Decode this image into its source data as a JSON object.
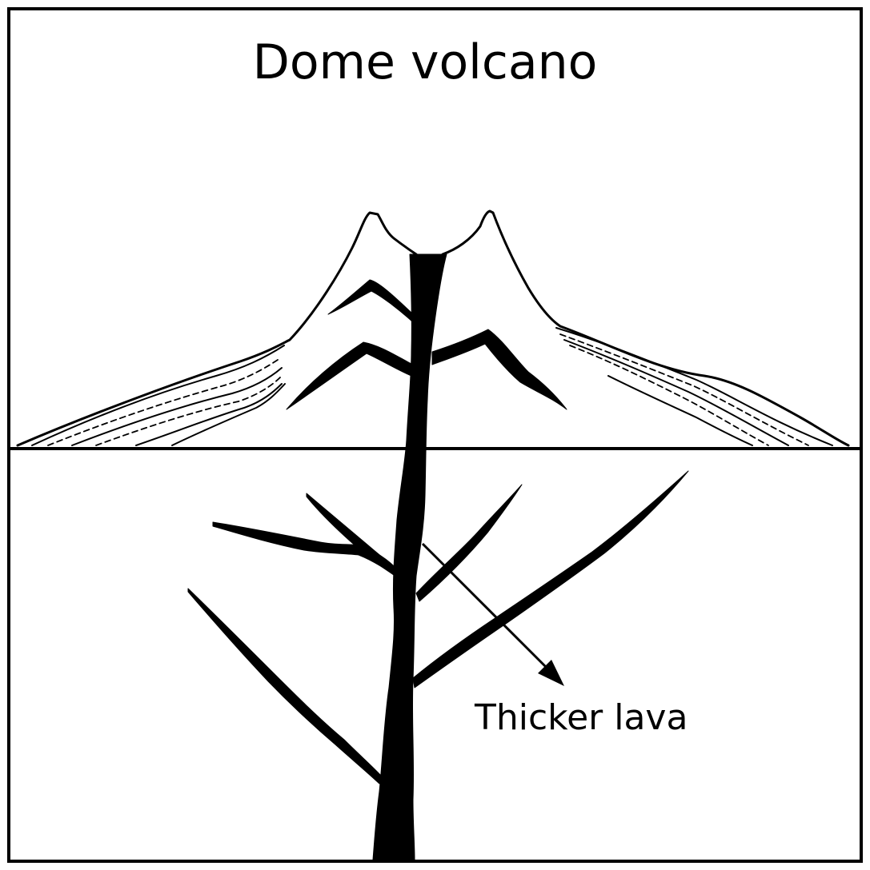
{
  "diagram": {
    "title": "Dome volcano",
    "labels": {
      "lava": "Thicker lava"
    },
    "colors": {
      "line": "#000000",
      "background": "#ffffff"
    }
  }
}
